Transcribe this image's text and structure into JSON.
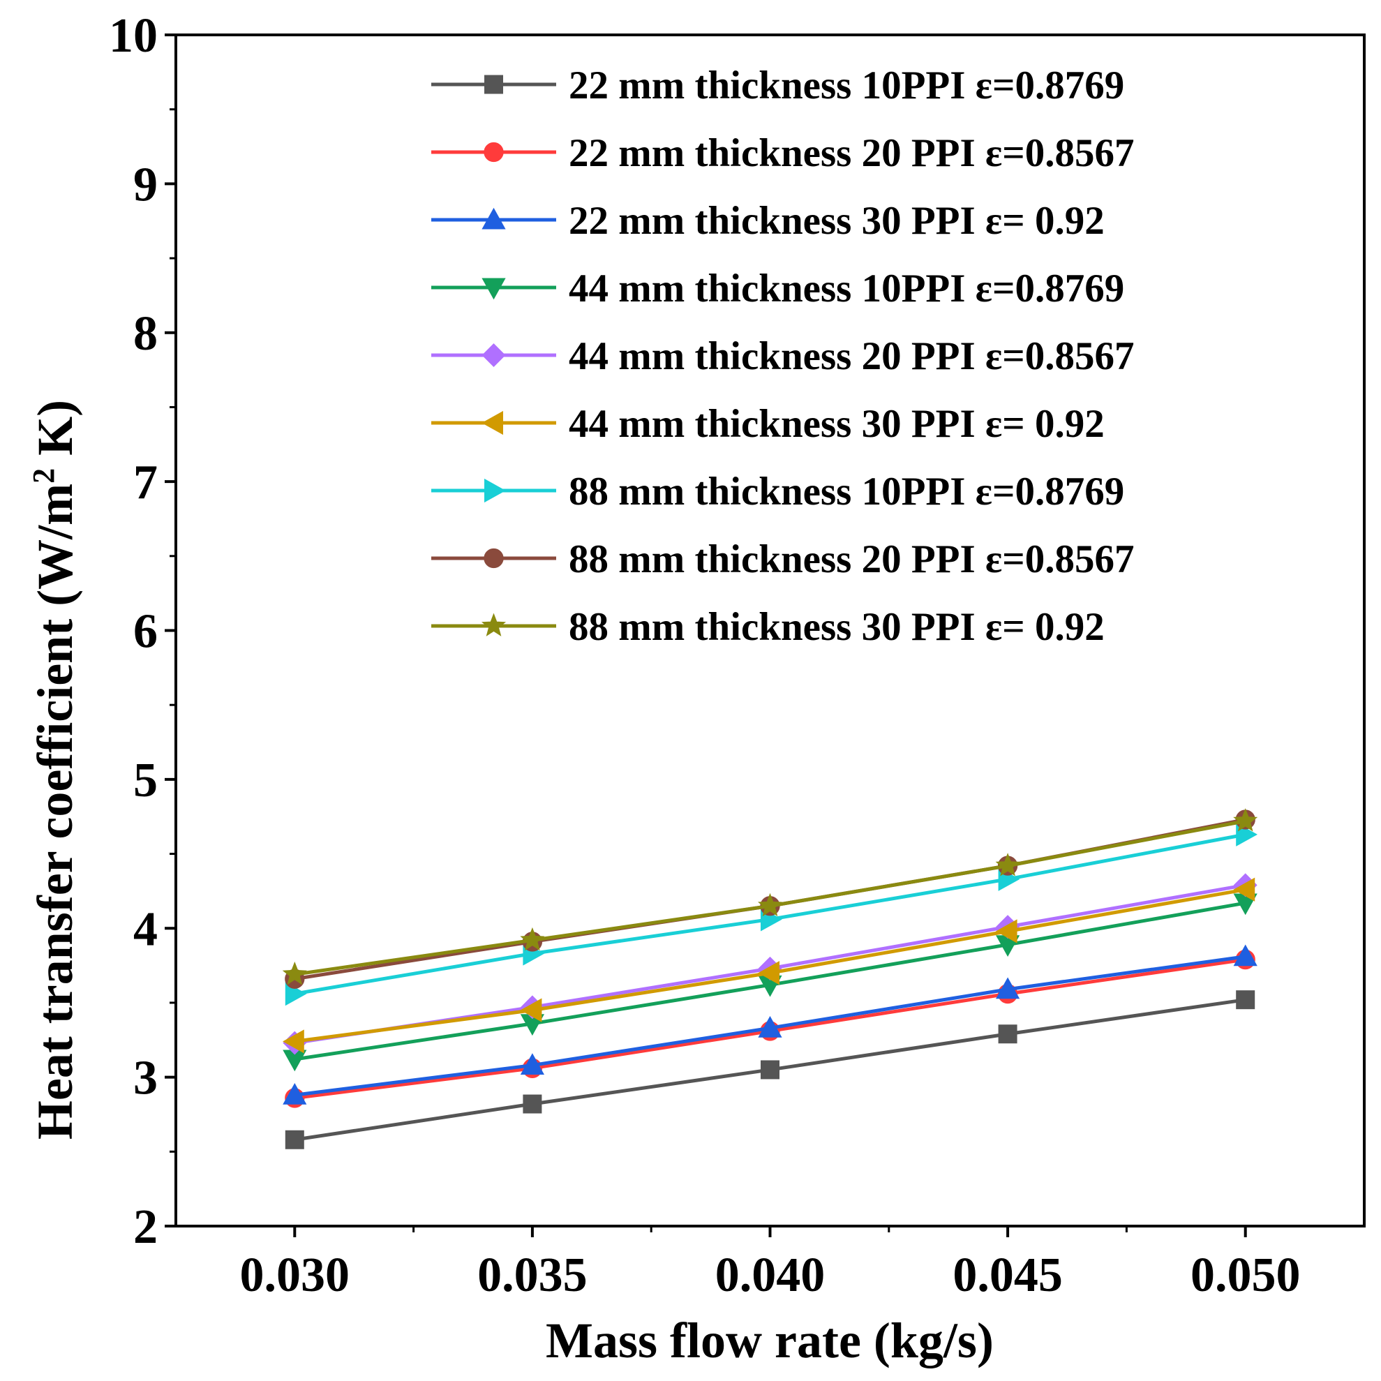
{
  "chart_data": {
    "type": "line",
    "title": "",
    "xlabel": "Mass flow rate (kg/s)",
    "ylabel": {
      "main": "Heat transfer coefficient (W/m",
      "sup": "2",
      "tail": " K)"
    },
    "x": [
      0.03,
      0.035,
      0.04,
      0.045,
      0.05
    ],
    "x_tick_labels": [
      "0.030",
      "0.035",
      "0.040",
      "0.045",
      "0.050"
    ],
    "y_tick_labels": [
      "2",
      "3",
      "4",
      "5",
      "6",
      "7",
      "8",
      "9",
      "10"
    ],
    "xlim": [
      0.0275,
      0.0525
    ],
    "ylim": [
      2,
      10
    ],
    "grid": false,
    "legend_position": "top-right",
    "series": [
      {
        "name": "22 mm thickness 10PPI ε=0.8769",
        "color": "#555555",
        "marker": "square",
        "values": [
          2.58,
          2.82,
          3.05,
          3.29,
          3.52
        ]
      },
      {
        "name": "22 mm thickness 20 PPI ε=0.8567",
        "color": "#ff3b3b",
        "marker": "circle",
        "values": [
          2.86,
          3.06,
          3.31,
          3.56,
          3.79
        ]
      },
      {
        "name": "22 mm thickness 30 PPI ε= 0.92",
        "color": "#1f5fe0",
        "marker": "triangle-up",
        "values": [
          2.88,
          3.08,
          3.33,
          3.59,
          3.81
        ]
      },
      {
        "name": "44 mm thickness 10PPI ε=0.8769",
        "color": "#13a05a",
        "marker": "triangle-down",
        "values": [
          3.12,
          3.36,
          3.62,
          3.89,
          4.17
        ]
      },
      {
        "name": "44 mm thickness 20 PPI ε=0.8567",
        "color": "#b070ff",
        "marker": "diamond",
        "values": [
          3.23,
          3.47,
          3.73,
          4.01,
          4.29
        ]
      },
      {
        "name": "44 mm thickness 30 PPI ε= 0.92",
        "color": "#d19a00",
        "marker": "triangle-left",
        "values": [
          3.24,
          3.45,
          3.7,
          3.98,
          4.26
        ]
      },
      {
        "name": "88 mm thickness 10PPI ε=0.8769",
        "color": "#19cfd6",
        "marker": "triangle-right",
        "values": [
          3.56,
          3.83,
          4.06,
          4.33,
          4.63
        ]
      },
      {
        "name": "88 mm thickness 20 PPI ε=0.8567",
        "color": "#8a4a3c",
        "marker": "circle",
        "values": [
          3.66,
          3.91,
          4.15,
          4.42,
          4.73
        ]
      },
      {
        "name": "88 mm thickness 30 PPI ε= 0.92",
        "color": "#8a8a10",
        "marker": "star",
        "values": [
          3.69,
          3.92,
          4.15,
          4.42,
          4.72
        ]
      }
    ]
  }
}
